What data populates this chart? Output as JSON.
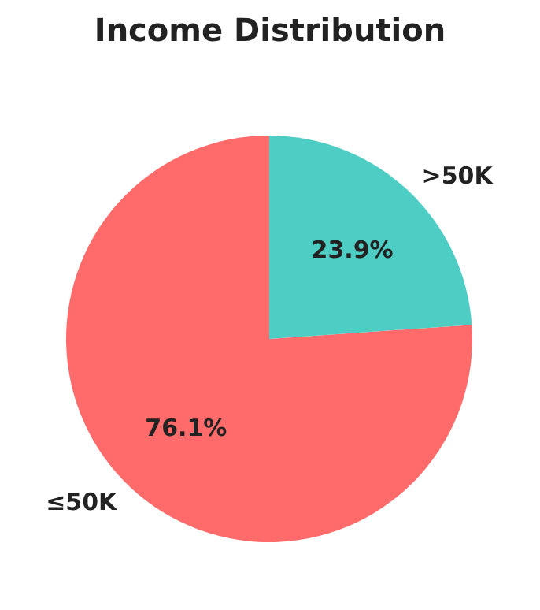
{
  "chart_data": {
    "type": "pie",
    "title": "Income Distribution",
    "categories": [
      "≤50K",
      ">50K"
    ],
    "values": [
      76.1,
      23.9
    ],
    "colors": [
      "#ff6b6b",
      "#4ecdc4"
    ],
    "value_labels": [
      "76.1%",
      "23.9%"
    ]
  }
}
